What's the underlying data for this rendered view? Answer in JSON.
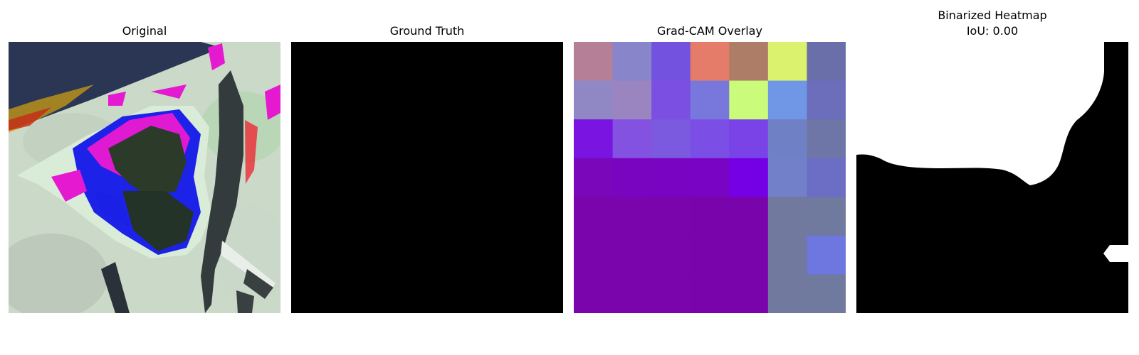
{
  "panels": [
    {
      "id": "original",
      "title": "Original",
      "image": "rgb-leaf-image"
    },
    {
      "id": "ground_truth",
      "title": "Ground Truth",
      "image": "black-mask"
    },
    {
      "id": "gradcam",
      "title": "Grad-CAM Overlay",
      "image": "gradcam-overlay",
      "grid_cols": 7,
      "grid_rows": 7,
      "cell_colors": [
        [
          "#b67f98",
          "#8985cb",
          "#7452e0",
          "#e57b69",
          "#ad7d67",
          "#dbf26f",
          "#6a6fa9"
        ],
        [
          "#8f88c4",
          "#9b85c1",
          "#7a4fe2",
          "#7877dc",
          "#cbfb7a",
          "#7096e6",
          "#6c6ebc"
        ],
        [
          "#7a14e0",
          "#8352e1",
          "#7b5ae0",
          "#7b4fe6",
          "#7a43e7",
          "#7080c4",
          "#6d76a6"
        ],
        [
          "#7a08ba",
          "#7a05c0",
          "#7904c2",
          "#7904c4",
          "#7500e6",
          "#7180c8",
          "#6c6ec6"
        ],
        [
          "#7a05ac",
          "#7a05ac",
          "#7a05ac",
          "#7a04ac",
          "#7a04ac",
          "#72799e",
          "#70799e"
        ],
        [
          "#7a05ac",
          "#7a05ac",
          "#7a05ac",
          "#7a04ac",
          "#7a04ac",
          "#72799e",
          "#6e76e0"
        ],
        [
          "#7a05ac",
          "#7a05ac",
          "#7a05ac",
          "#7a04ac",
          "#7a04ac",
          "#72799e",
          "#70799e"
        ]
      ]
    },
    {
      "id": "binarized",
      "title_line1": "Binarized Heatmap",
      "title_line2": "IoU: 0.00",
      "image": "binary-mask"
    }
  ]
}
